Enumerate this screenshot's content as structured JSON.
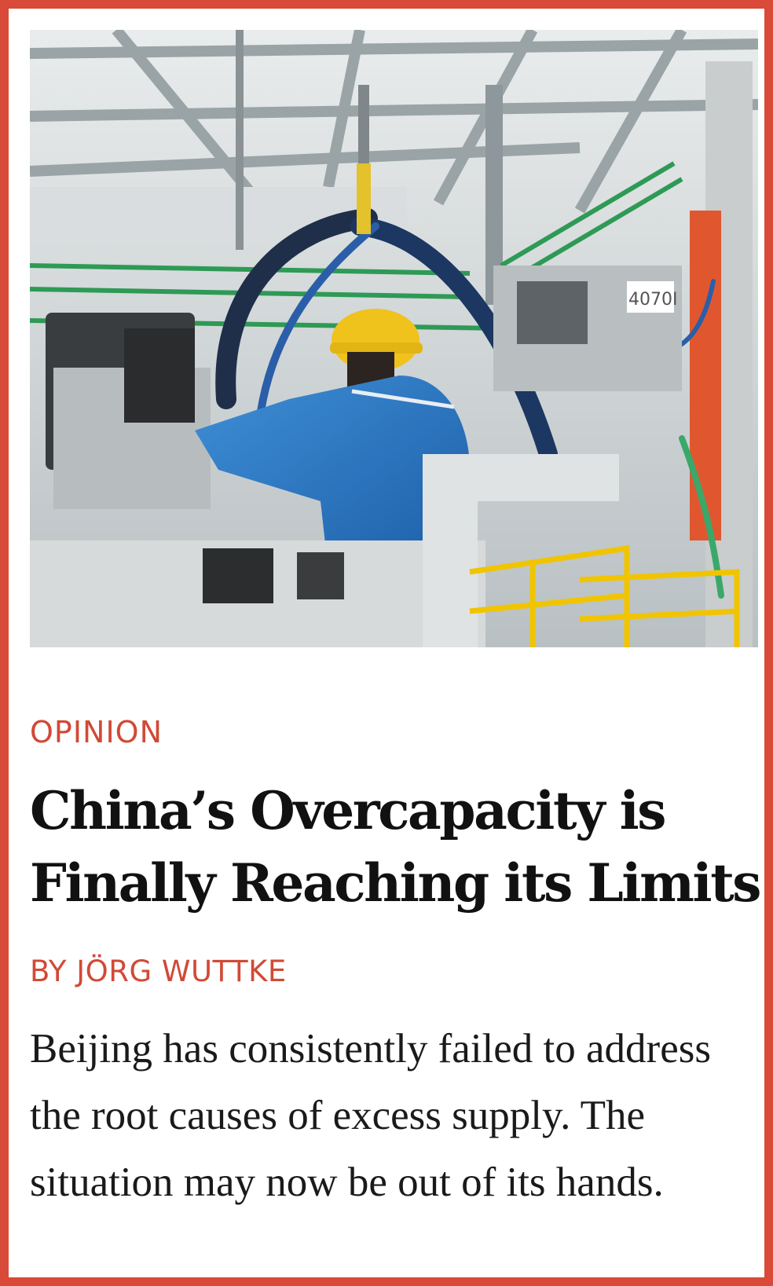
{
  "article": {
    "kicker": "OPINION",
    "headline": "China’s Overcapacity is Finally Reaching its Limits",
    "byline": "BY JÖRG WUTTKE",
    "dek": "Beijing has consistently failed to address the root causes of excess supply. The situation may now be out of its hands."
  },
  "photo": {
    "sign_text": "4070I"
  },
  "colors": {
    "accent": "#d94a38",
    "kicker": "#d14a36",
    "headline": "#111111",
    "body": "#1a1a1a"
  }
}
